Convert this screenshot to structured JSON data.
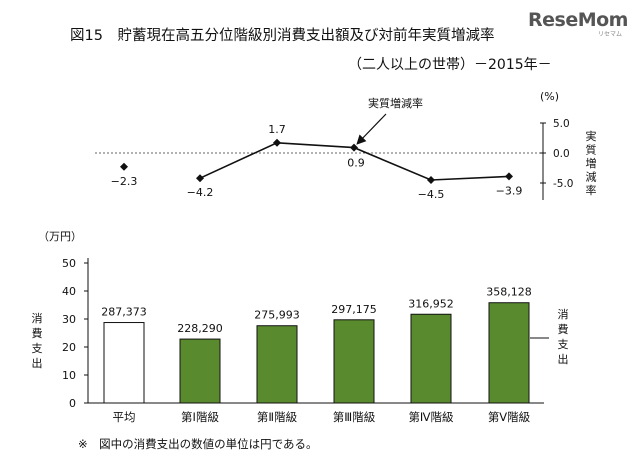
{
  "logo": {
    "main": "ReseMom",
    "sub": "リセマム"
  },
  "chart_data": [
    {
      "type": "line",
      "title": "図15　貯蓄現在高五分位階級別消費支出額及び対前年実質増減率",
      "subtitle": "（二人以上の世帯）－2015年－",
      "ylabel": "実質増減率",
      "yunit": "(%)",
      "callout": "実質増減率",
      "ylim": [
        -5.0,
        5.0
      ],
      "yticks": [
        "5.0",
        "0.0",
        "-5.0"
      ],
      "ytick_values": [
        5.0,
        0.0,
        -5.0
      ],
      "categories": [
        "平均",
        "第Ⅰ階級",
        "第Ⅱ階級",
        "第Ⅲ階級",
        "第Ⅳ階級",
        "第Ⅴ階級"
      ],
      "values": [
        -2.3,
        -4.2,
        1.7,
        0.9,
        -4.5,
        -3.9
      ],
      "labels": [
        "−2.3",
        "−4.2",
        "1.7",
        "0.9",
        "−4.5",
        "−3.9"
      ],
      "connect_from_index": 1
    },
    {
      "type": "bar",
      "yunit": "（万円）",
      "ylabel": "消費支出",
      "legend": "消費支出",
      "ylim": [
        0,
        50
      ],
      "yticks": [
        "0",
        "10",
        "20",
        "30",
        "40",
        "50"
      ],
      "ytick_values": [
        0,
        10,
        20,
        30,
        40,
        50
      ],
      "categories": [
        "平均",
        "第Ⅰ階級",
        "第Ⅱ階級",
        "第Ⅲ階級",
        "第Ⅳ階級",
        "第Ⅴ階級"
      ],
      "values": [
        28.7373,
        22.829,
        27.5993,
        29.7175,
        31.6952,
        35.8128
      ],
      "labels": [
        "287,373",
        "228,290",
        "275,993",
        "297,175",
        "316,952",
        "358,128"
      ],
      "colors": {
        "average": "#ffffff",
        "bar": "#5a8a2e",
        "outline": "#111111"
      }
    }
  ],
  "note": "※　図中の消費支出の数値の単位は円である。"
}
